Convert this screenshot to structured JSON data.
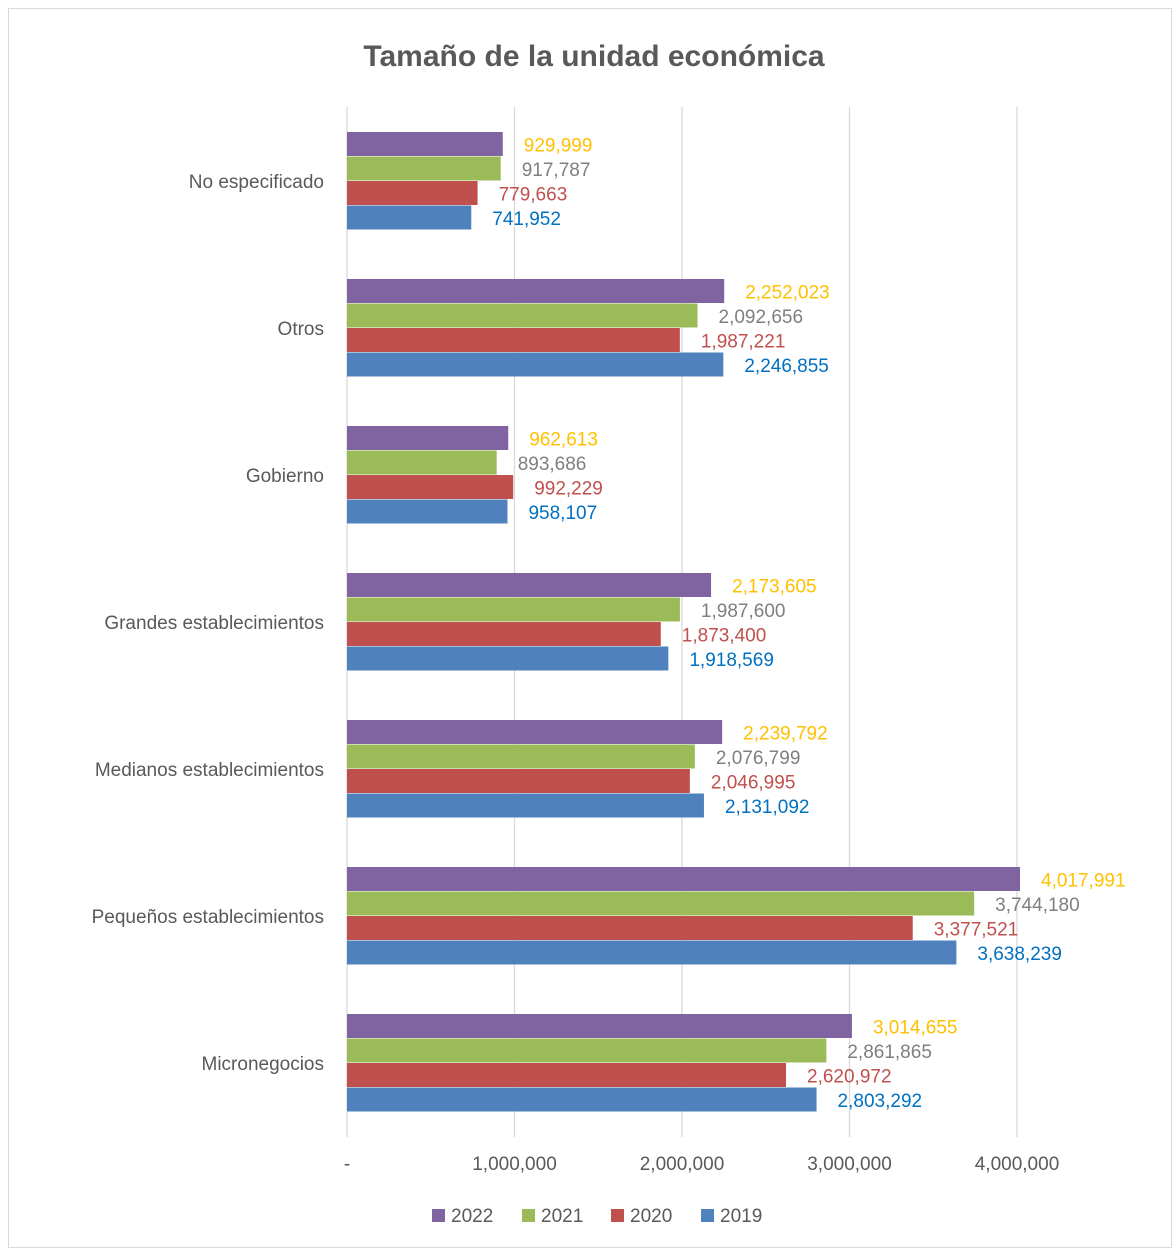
{
  "chart_data": {
    "type": "bar",
    "orientation": "horizontal",
    "title": "Tamaño de la unidad económica",
    "xlabel": "",
    "ylabel": "",
    "xlim": [
      0,
      4500000
    ],
    "x_ticks": [
      0,
      1000000,
      2000000,
      3000000,
      4000000
    ],
    "x_tick_labels": [
      "-",
      "1,000,000",
      "2,000,000",
      "3,000,000",
      "4,000,000"
    ],
    "grid": "vertical",
    "legend_position": "bottom",
    "categories": [
      "No especificado",
      "Otros",
      "Gobierno",
      "Grandes establecimientos",
      "Medianos establecimientos",
      "Pequeños establecimientos",
      "Micronegocios"
    ],
    "series": [
      {
        "name": "2022",
        "color": "#8064a2",
        "label_color": "#ffc000",
        "values": [
          929999,
          2252023,
          962613,
          2173605,
          2239792,
          4017991,
          3014655
        ],
        "labels": [
          "929,999",
          "2,252,023",
          "962,613",
          "2,173,605",
          "2,239,792",
          "4,017,991",
          "3,014,655"
        ]
      },
      {
        "name": "2021",
        "color": "#9bbb59",
        "label_color": "#7f7f7f",
        "values": [
          917787,
          2092656,
          893686,
          1987600,
          2076799,
          3744180,
          2861865
        ],
        "labels": [
          "917,787",
          "2,092,656",
          "893,686",
          "1,987,600",
          "2,076,799",
          "3,744,180",
          "2,861,865"
        ]
      },
      {
        "name": "2020",
        "color": "#c0504d",
        "label_color": "#c0504d",
        "values": [
          779663,
          1987221,
          992229,
          1873400,
          2046995,
          3377521,
          2620972
        ],
        "labels": [
          "779,663",
          "1,987,221",
          "992,229",
          "1,873,400",
          "2,046,995",
          "3,377,521",
          "2,620,972"
        ]
      },
      {
        "name": "2019",
        "color": "#4f81bd",
        "label_color": "#0070c0",
        "values": [
          741952,
          2246855,
          958107,
          1918569,
          2131092,
          3638239,
          2803292
        ],
        "labels": [
          "741,952",
          "2,246,855",
          "958,107",
          "1,918,569",
          "2,131,092",
          "3,638,239",
          "2,803,292"
        ]
      }
    ]
  }
}
